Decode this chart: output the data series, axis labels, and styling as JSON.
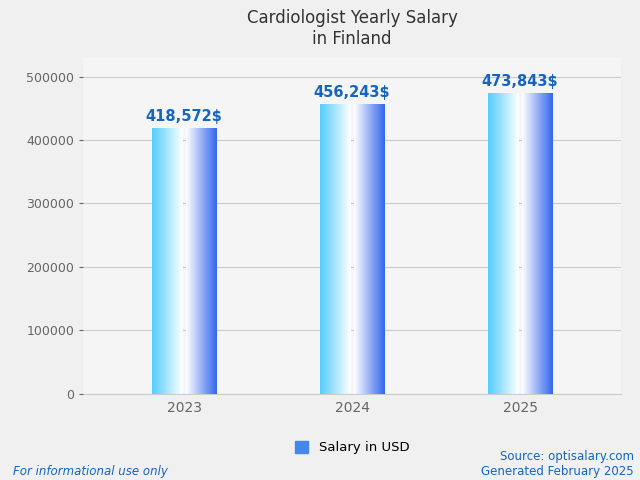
{
  "title": "Cardiologist Yearly Salary\nin Finland",
  "years": [
    "2023",
    "2024",
    "2025"
  ],
  "values": [
    418572,
    456243,
    473843
  ],
  "labels": [
    "418,572$",
    "456,243$",
    "473,843$"
  ],
  "ylim": [
    0,
    530000
  ],
  "yticks": [
    0,
    100000,
    200000,
    300000,
    400000,
    500000
  ],
  "ytick_labels": [
    "0",
    "100000",
    "200000",
    "300000",
    "400000",
    "500000"
  ],
  "single_bar_width": 0.18,
  "bar_gap": 0.02,
  "label_color": "#1565C0",
  "label_fontsize": 10.5,
  "title_fontsize": 12,
  "title_color": "#333333",
  "tick_color": "#666666",
  "xtick_fontsize": 10,
  "ytick_fontsize": 9,
  "grid_color": "#cccccc",
  "legend_label": "Salary in USD",
  "legend_color": "#4488ee",
  "footer_left": "For informational use only",
  "footer_right": "Source: optisalary.com\nGenerated February 2025",
  "footer_color": "#1565C0",
  "footer_fontsize": 8.5,
  "bg_color": "#f0f0f0",
  "plot_bg_color": "#f5f5f5",
  "bar_left_start": "#55ccff",
  "bar_left_end": "#ffffff",
  "bar_right_start": "#ffffff",
  "bar_right_end": "#3366ee",
  "n_gradient_steps": 100
}
